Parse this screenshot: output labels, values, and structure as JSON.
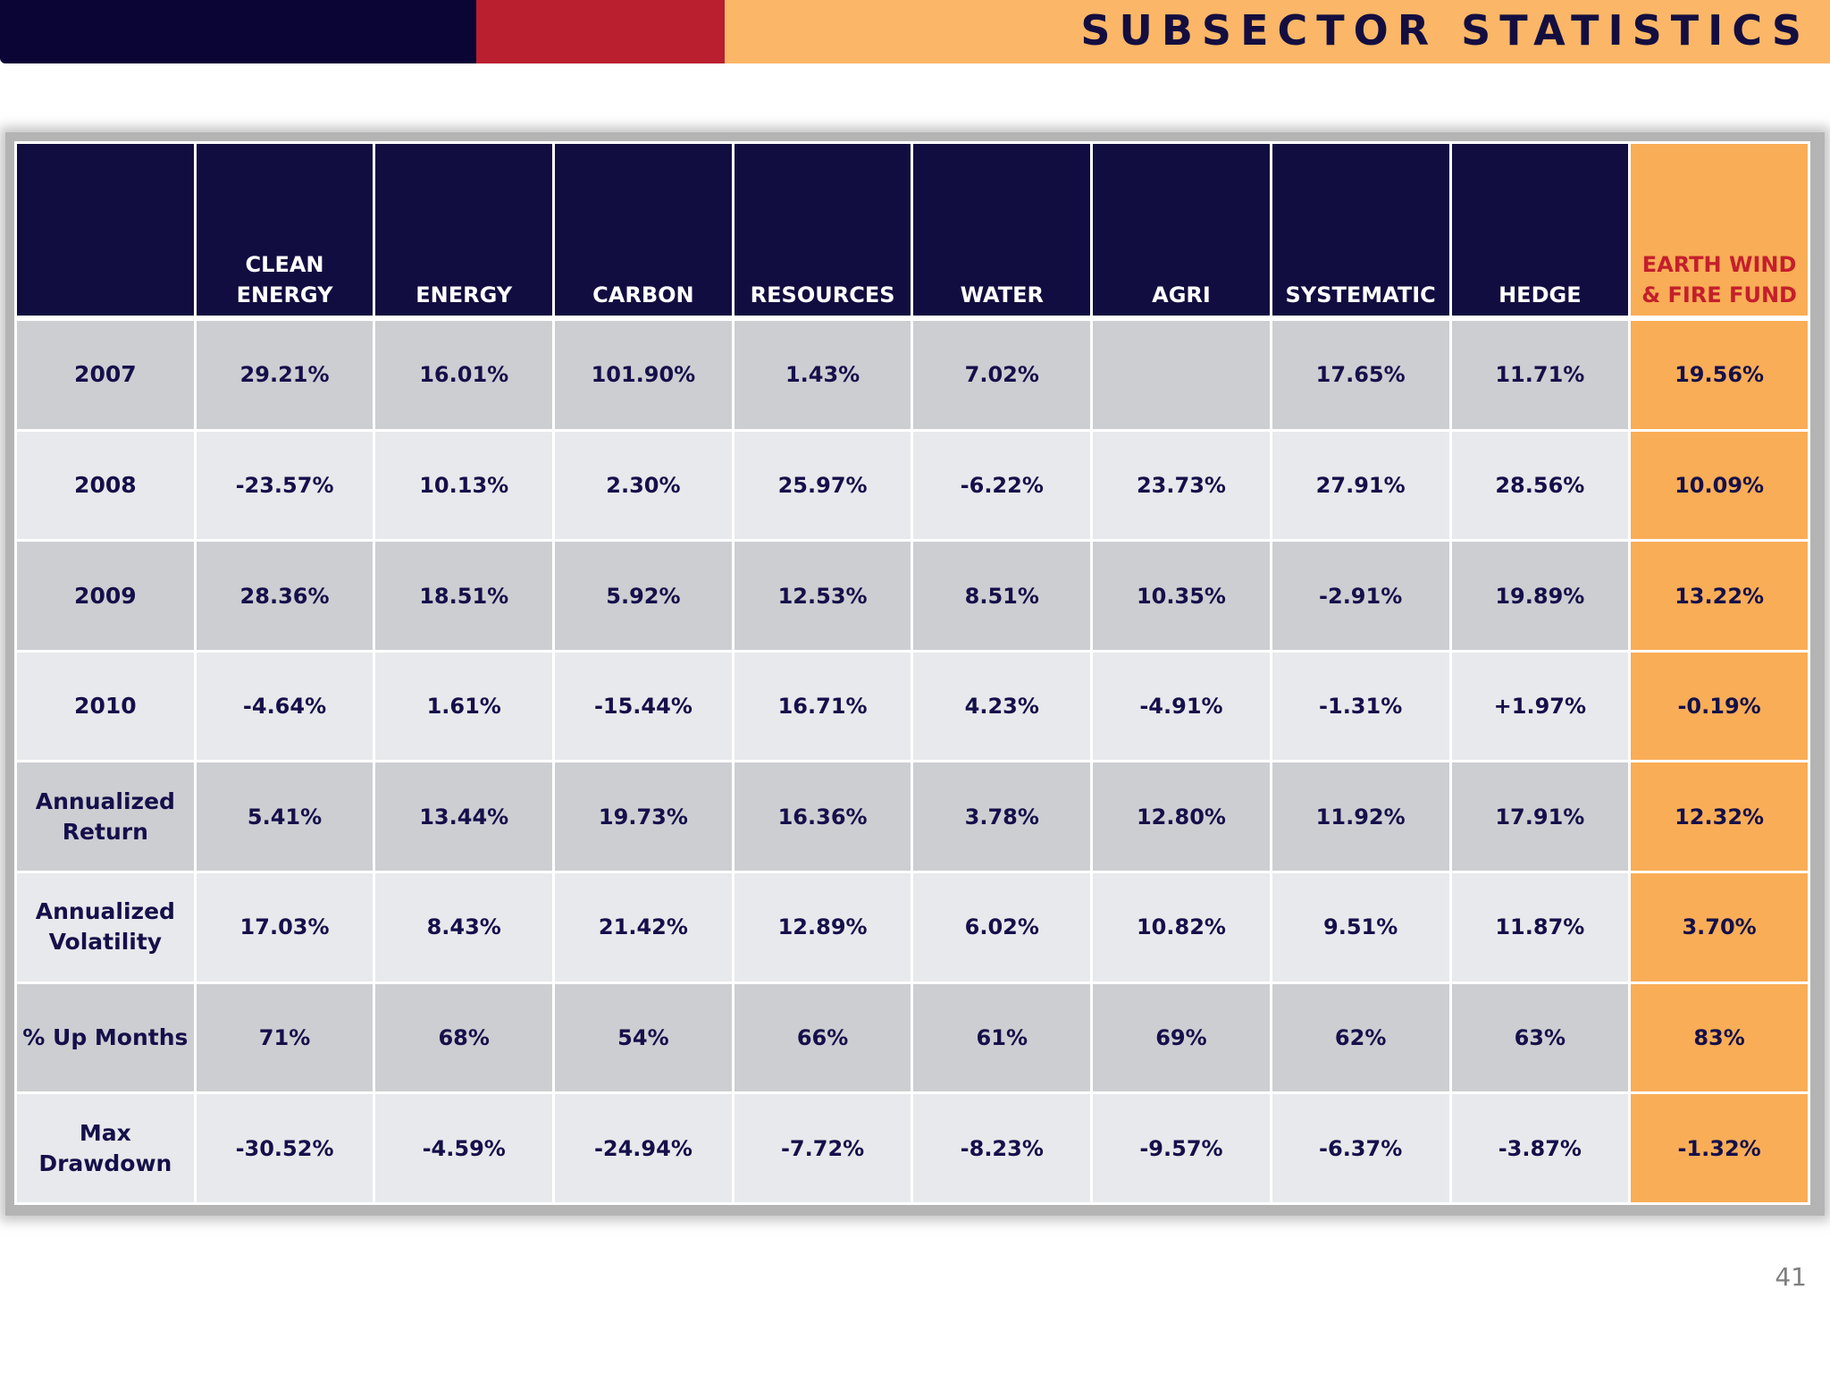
{
  "header": {
    "title": "SUBSECTOR STATISTICS",
    "colors": {
      "navy": "#0b0536",
      "red": "#b91f2f",
      "orange": "#fbb767"
    }
  },
  "table": {
    "columns": [
      "",
      "CLEAN\nENERGY",
      "ENERGY",
      "CARBON",
      "RESOURCES",
      "WATER",
      "AGRI",
      "SYSTEMATIC",
      "HEDGE",
      "EARTH WIND\n& FIRE FUND"
    ],
    "rows": [
      {
        "label": "2007",
        "values": [
          "29.21%",
          "16.01%",
          "101.90%",
          "1.43%",
          "7.02%",
          "",
          "17.65%",
          "11.71%",
          "19.56%"
        ]
      },
      {
        "label": "2008",
        "values": [
          "-23.57%",
          "10.13%",
          "2.30%",
          "25.97%",
          "-6.22%",
          "23.73%",
          "27.91%",
          "28.56%",
          "10.09%"
        ]
      },
      {
        "label": "2009",
        "values": [
          "28.36%",
          "18.51%",
          "5.92%",
          "12.53%",
          "8.51%",
          "10.35%",
          "-2.91%",
          "19.89%",
          "13.22%"
        ]
      },
      {
        "label": "2010",
        "values": [
          "-4.64%",
          "1.61%",
          "-15.44%",
          "16.71%",
          "4.23%",
          "-4.91%",
          "-1.31%",
          "+1.97%",
          "-0.19%"
        ]
      },
      {
        "label": "Annualized\nReturn",
        "values": [
          "5.41%",
          "13.44%",
          "19.73%",
          "16.36%",
          "3.78%",
          "12.80%",
          "11.92%",
          "17.91%",
          "12.32%"
        ]
      },
      {
        "label": "Annualized\nVolatility",
        "values": [
          "17.03%",
          "8.43%",
          "21.42%",
          "12.89%",
          "6.02%",
          "10.82%",
          "9.51%",
          "11.87%",
          "3.70%"
        ]
      },
      {
        "label": "% Up Months",
        "values": [
          "71%",
          "68%",
          "54%",
          "66%",
          "61%",
          "69%",
          "62%",
          "63%",
          "83%"
        ]
      },
      {
        "label": "Max\nDrawdown",
        "values": [
          "-30.52%",
          "-4.59%",
          "-24.94%",
          "-7.72%",
          "-8.23%",
          "-9.57%",
          "-6.37%",
          "-3.87%",
          "-1.32%"
        ]
      }
    ],
    "colors": {
      "header_bg": "#120d40",
      "fund_bg": "#f9ad56",
      "fund_header_text": "#c41f2c",
      "row_dark": "#cdced2",
      "row_light": "#e8e9ec"
    }
  },
  "footer": {
    "page_number": "41"
  }
}
